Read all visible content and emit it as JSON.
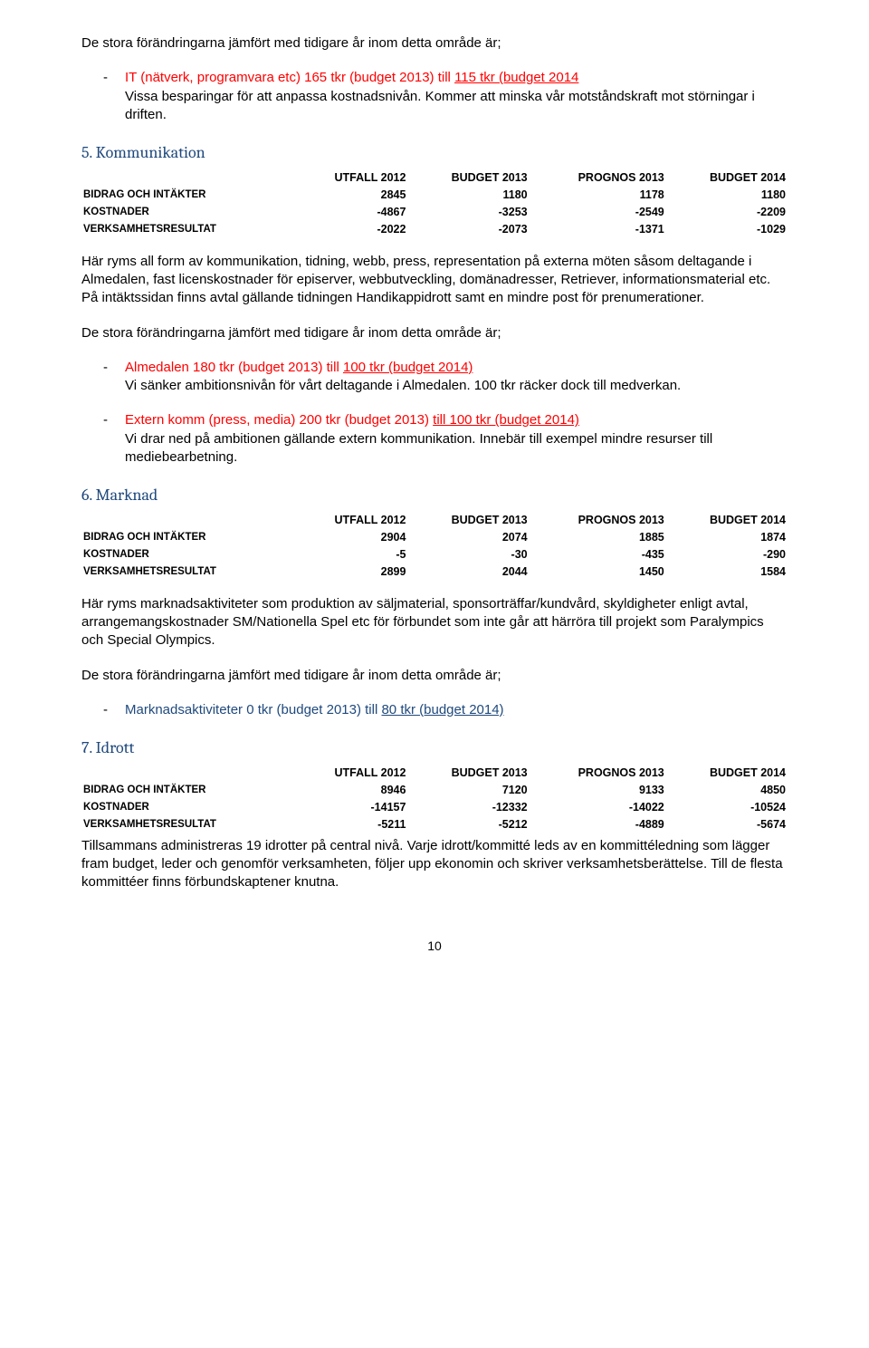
{
  "common": {
    "compareText": "De stora förändringarna jämfört med tidigare år inom detta område är;",
    "tableHeaders": [
      "",
      "UTFALL 2012",
      "BUDGET 2013",
      "PROGNOS 2013",
      "BUDGET 2014"
    ],
    "rowLabels": [
      "BIDRAG OCH INTÄKTER",
      "KOSTNADER",
      "VERKSAMHETSRESULTAT"
    ]
  },
  "section4Tail": {
    "bullet1Lead": "IT (nätverk, programvara etc) 165 tkr (budget 2013) till ",
    "bullet1Underline": "115 tkr (budget 2014",
    "bullet1After1": "Vissa besparingar för att anpassa kostnadsnivån. Kommer att minska vår motståndskraft mot störningar i driften."
  },
  "section5": {
    "heading": "5. Kommunikation",
    "rows": [
      [
        "2845",
        "1180",
        "1178",
        "1180"
      ],
      [
        "-4867",
        "-3253",
        "-2549",
        "-2209"
      ],
      [
        "-2022",
        "-2073",
        "-1371",
        "-1029"
      ]
    ],
    "para": "Här ryms all form av kommunikation, tidning, webb, press, representation på externa möten såsom deltagande i Almedalen, fast licenskostnader för episerver, webbutveckling, domänadresser, Retriever, informationsmaterial etc. På intäktssidan finns avtal gällande tidningen Handikappidrott samt en mindre post för prenumerationer.",
    "bullet1Title": "Almedalen 180 tkr (budget 2013) till ",
    "bullet1Underline": "100 tkr (budget 2014)",
    "bullet1Body": "Vi sänker ambitionsnivån för vårt deltagande i Almedalen. 100 tkr räcker dock till medverkan.",
    "bullet2Title": "Extern komm (press, media) 200 tkr (budget 2013) ",
    "bullet2Underline": "till 100 tkr (budget 2014)",
    "bullet2Body": "Vi drar ned på ambitionen gällande extern kommunikation. Innebär till exempel mindre resurser till mediebearbetning."
  },
  "section6": {
    "heading": "6. Marknad",
    "rows": [
      [
        "2904",
        "2074",
        "1885",
        "1874"
      ],
      [
        "-5",
        "-30",
        "-435",
        "-290"
      ],
      [
        "2899",
        "2044",
        "1450",
        "1584"
      ]
    ],
    "para": "Här ryms marknadsaktiviteter som produktion av säljmaterial, sponsorträffar/kundvård, skyldigheter enligt avtal, arrangemangskostnader SM/Nationella Spel etc för förbundet som inte går att härröra till projekt som Paralympics och Special Olympics.",
    "bullet1Title": "Marknadsaktiviteter 0 tkr (budget 2013) till ",
    "bullet1Underline": "80 tkr (budget 2014)"
  },
  "section7": {
    "heading": "7. Idrott",
    "rows": [
      [
        "8946",
        "7120",
        "9133",
        "4850"
      ],
      [
        "-14157",
        "-12332",
        "-14022",
        "-10524"
      ],
      [
        "-5211",
        "-5212",
        "-4889",
        "-5674"
      ]
    ],
    "para": "Tillsammans administreras 19 idrotter på central nivå. Varje idrott/kommitté leds av en kommittéledning som lägger fram budget, leder och genomför verksamheten, följer upp ekonomin och skriver verksamhetsberättelse. Till de flesta kommittéer finns förbundskaptener knutna."
  },
  "pageNumber": "10"
}
